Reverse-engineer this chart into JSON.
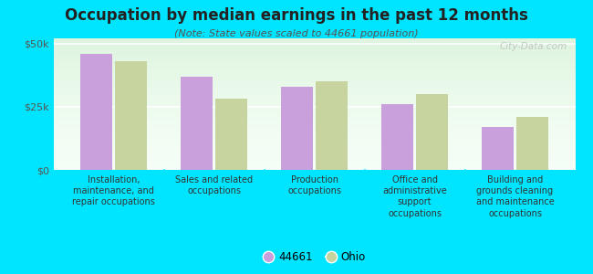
{
  "title": "Occupation by median earnings in the past 12 months",
  "subtitle": "(Note: State values scaled to 44661 population)",
  "categories": [
    "Installation,\nmaintenance, and\nrepair occupations",
    "Sales and related\noccupations",
    "Production\noccupations",
    "Office and\nadministrative\nsupport\noccupations",
    "Building and\ngrounds cleaning\nand maintenance\noccupations"
  ],
  "values_44661": [
    46000,
    37000,
    33000,
    26000,
    17000
  ],
  "values_ohio": [
    43000,
    28000,
    35000,
    30000,
    21000
  ],
  "color_44661": "#c9a0dc",
  "color_ohio": "#c8d4a0",
  "background_outer": "#00e5ff",
  "background_plot_top": "#ffffff",
  "background_plot_bottom": "#c8f0e0",
  "ylim": [
    0,
    52000
  ],
  "yticks": [
    0,
    25000,
    50000
  ],
  "ytick_labels": [
    "$0",
    "$25k",
    "$50k"
  ],
  "legend_label_1": "44661",
  "legend_label_2": "Ohio",
  "watermark": "City-Data.com",
  "title_fontsize": 12,
  "subtitle_fontsize": 8,
  "tick_label_fontsize": 7,
  "legend_fontsize": 8.5
}
